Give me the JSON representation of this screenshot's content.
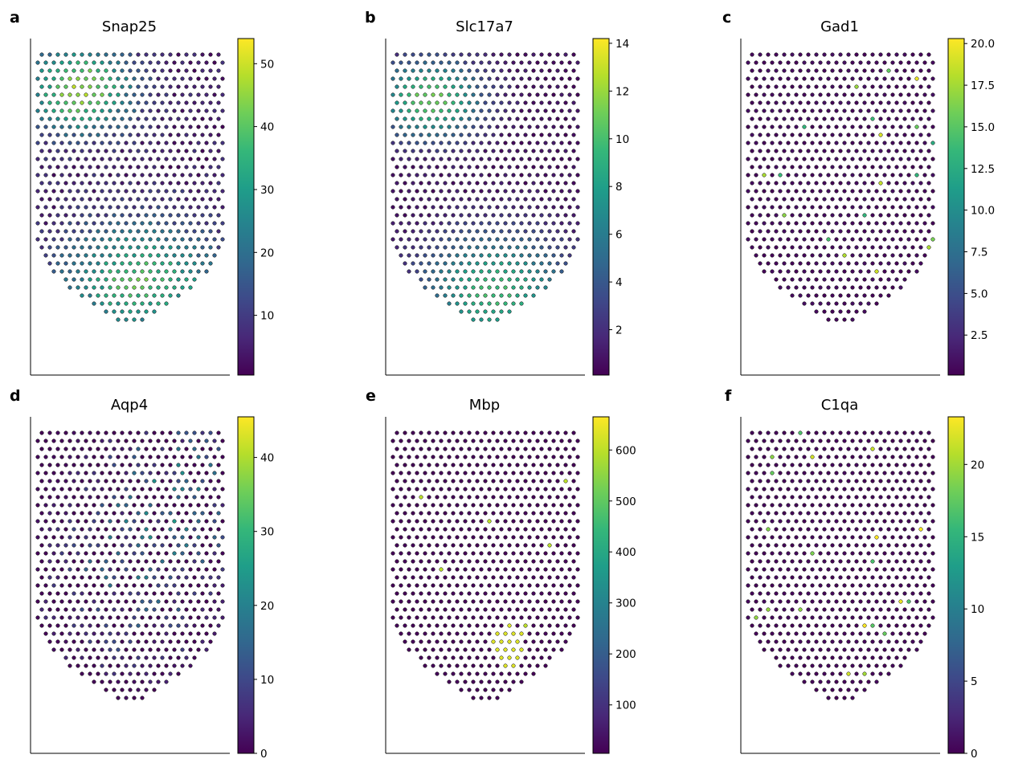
{
  "figure": {
    "colormap": "viridis",
    "viridis_stops": [
      "#440154",
      "#482878",
      "#3e4989",
      "#31688e",
      "#26828e",
      "#1f9e89",
      "#35b779",
      "#6ece58",
      "#b5de2b",
      "#fde725"
    ]
  },
  "chart_data": [
    {
      "type": "scatter",
      "panel_label": "a",
      "title": "Snap25",
      "colorbar": {
        "range": [
          0.5,
          54
        ],
        "ticks": [
          10,
          20,
          30,
          40,
          50
        ],
        "tick_labels": [
          "10",
          "20",
          "30",
          "40",
          "50"
        ]
      },
      "expression_hotspots": [
        {
          "region": "upper-left",
          "level": 40
        },
        {
          "region": "lower",
          "level": 35
        }
      ]
    },
    {
      "type": "scatter",
      "panel_label": "b",
      "title": "Slc17a7",
      "colorbar": {
        "range": [
          0.1,
          14.2
        ],
        "ticks": [
          2,
          4,
          6,
          8,
          10,
          12,
          14
        ],
        "tick_labels": [
          "2",
          "4",
          "6",
          "8",
          "10",
          "12",
          "14"
        ]
      },
      "expression_hotspots": [
        {
          "region": "upper-left",
          "level": 11
        },
        {
          "region": "lower",
          "level": 10
        }
      ]
    },
    {
      "type": "scatter",
      "panel_label": "c",
      "title": "Gad1",
      "colorbar": {
        "range": [
          0.1,
          20.3
        ],
        "ticks": [
          2.5,
          5.0,
          7.5,
          10.0,
          12.5,
          15.0,
          17.5,
          20.0
        ],
        "tick_labels": [
          "2.5",
          "5.0",
          "7.5",
          "10.0",
          "12.5",
          "15.0",
          "17.5",
          "20.0"
        ]
      },
      "expression_hotspots": [
        {
          "region": "sparse",
          "level": 20
        }
      ]
    },
    {
      "type": "scatter",
      "panel_label": "d",
      "title": "Aqp4",
      "colorbar": {
        "range": [
          0,
          45.5
        ],
        "ticks": [
          0,
          10,
          20,
          30,
          40
        ],
        "tick_labels": [
          "0",
          "10",
          "20",
          "30",
          "40"
        ]
      },
      "expression_hotspots": [
        {
          "region": "upper-right",
          "level": 30
        },
        {
          "region": "middle",
          "level": 30
        }
      ]
    },
    {
      "type": "scatter",
      "panel_label": "e",
      "title": "Mbp",
      "colorbar": {
        "range": [
          5,
          665
        ],
        "ticks": [
          100,
          200,
          300,
          400,
          500,
          600
        ],
        "tick_labels": [
          "100",
          "200",
          "300",
          "400",
          "500",
          "600"
        ]
      },
      "expression_hotspots": [
        {
          "region": "lower-middle",
          "level": 600
        }
      ]
    },
    {
      "type": "scatter",
      "panel_label": "f",
      "title": "C1qa",
      "colorbar": {
        "range": [
          0,
          23.3
        ],
        "ticks": [
          0,
          5,
          10,
          15,
          20
        ],
        "tick_labels": [
          "0",
          "5",
          "10",
          "15",
          "20"
        ]
      },
      "expression_hotspots": [
        {
          "region": "sparse",
          "level": 22
        }
      ]
    }
  ]
}
